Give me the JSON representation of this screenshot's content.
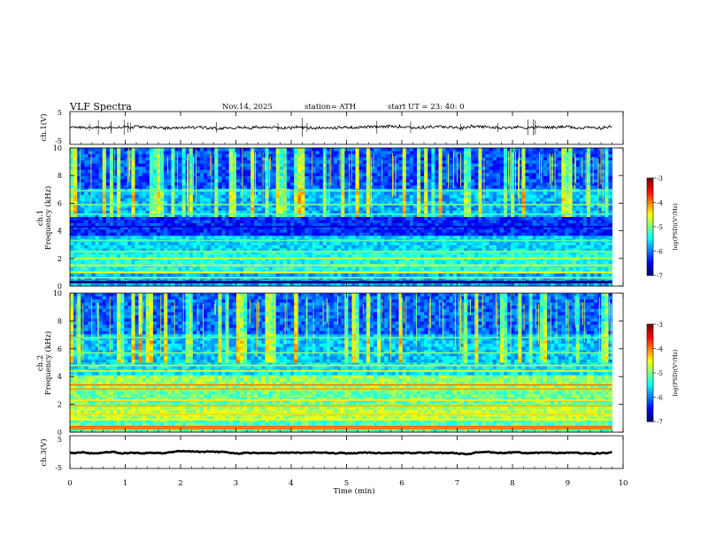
{
  "header": {
    "title": "VLF  Spectra",
    "date": "Nov.14, 2025",
    "station": "station= ATH",
    "start": "start  UT  =    23: 40: 0"
  },
  "chart_data": [
    {
      "type": "line",
      "name": "ch1-voltage",
      "ylabel": "ch.1(V)",
      "ylim": [
        -5,
        5
      ],
      "yticks": [
        "5",
        "-5"
      ],
      "xlim": [
        0,
        10
      ],
      "trace_mean_v": 0.2,
      "trace_noise_amplitude_v": 0.8,
      "color": "#000000"
    },
    {
      "type": "heatmap",
      "name": "ch1-spectrogram",
      "ylabel_line1": "ch.1",
      "ylabel_line2": "Frequency (kHz)",
      "ylim": [
        0,
        10
      ],
      "yticks": [
        "0",
        "2",
        "4",
        "6",
        "8",
        "10"
      ],
      "xlim": [
        0,
        10
      ],
      "data_end_min": 9.8,
      "colorbar": {
        "label": "log(PSD)(V²/Hz)",
        "range": [
          -7,
          -3
        ],
        "ticks": [
          "-3",
          "-4",
          "-5",
          "-6",
          "-7"
        ]
      }
    },
    {
      "type": "heatmap",
      "name": "ch2-spectrogram",
      "ylabel_line1": "ch.2",
      "ylabel_line2": "Frequency (kHz)",
      "ylim": [
        0,
        10
      ],
      "yticks": [
        "0",
        "2",
        "4",
        "6",
        "8",
        "10"
      ],
      "xlim": [
        0,
        10
      ],
      "data_end_min": 9.8,
      "colorbar": {
        "label": "log(PSD)(V²/Hz)",
        "range": [
          -7,
          -3
        ],
        "ticks": [
          "-3",
          "-4",
          "-5",
          "-6",
          "-7"
        ]
      }
    },
    {
      "type": "line",
      "name": "ch3-voltage",
      "ylabel": "ch.3(V)",
      "ylim": [
        -5,
        5
      ],
      "yticks": [
        "5",
        "-5"
      ],
      "xlim": [
        0,
        10
      ],
      "trace_mean_v": -0.2,
      "trace_noise_amplitude_v": 0.1,
      "color": "#000000"
    }
  ],
  "xaxis": {
    "label": "Time  (min)",
    "ticks": [
      "0",
      "1",
      "2",
      "3",
      "4",
      "5",
      "6",
      "7",
      "8",
      "9",
      "10"
    ]
  }
}
